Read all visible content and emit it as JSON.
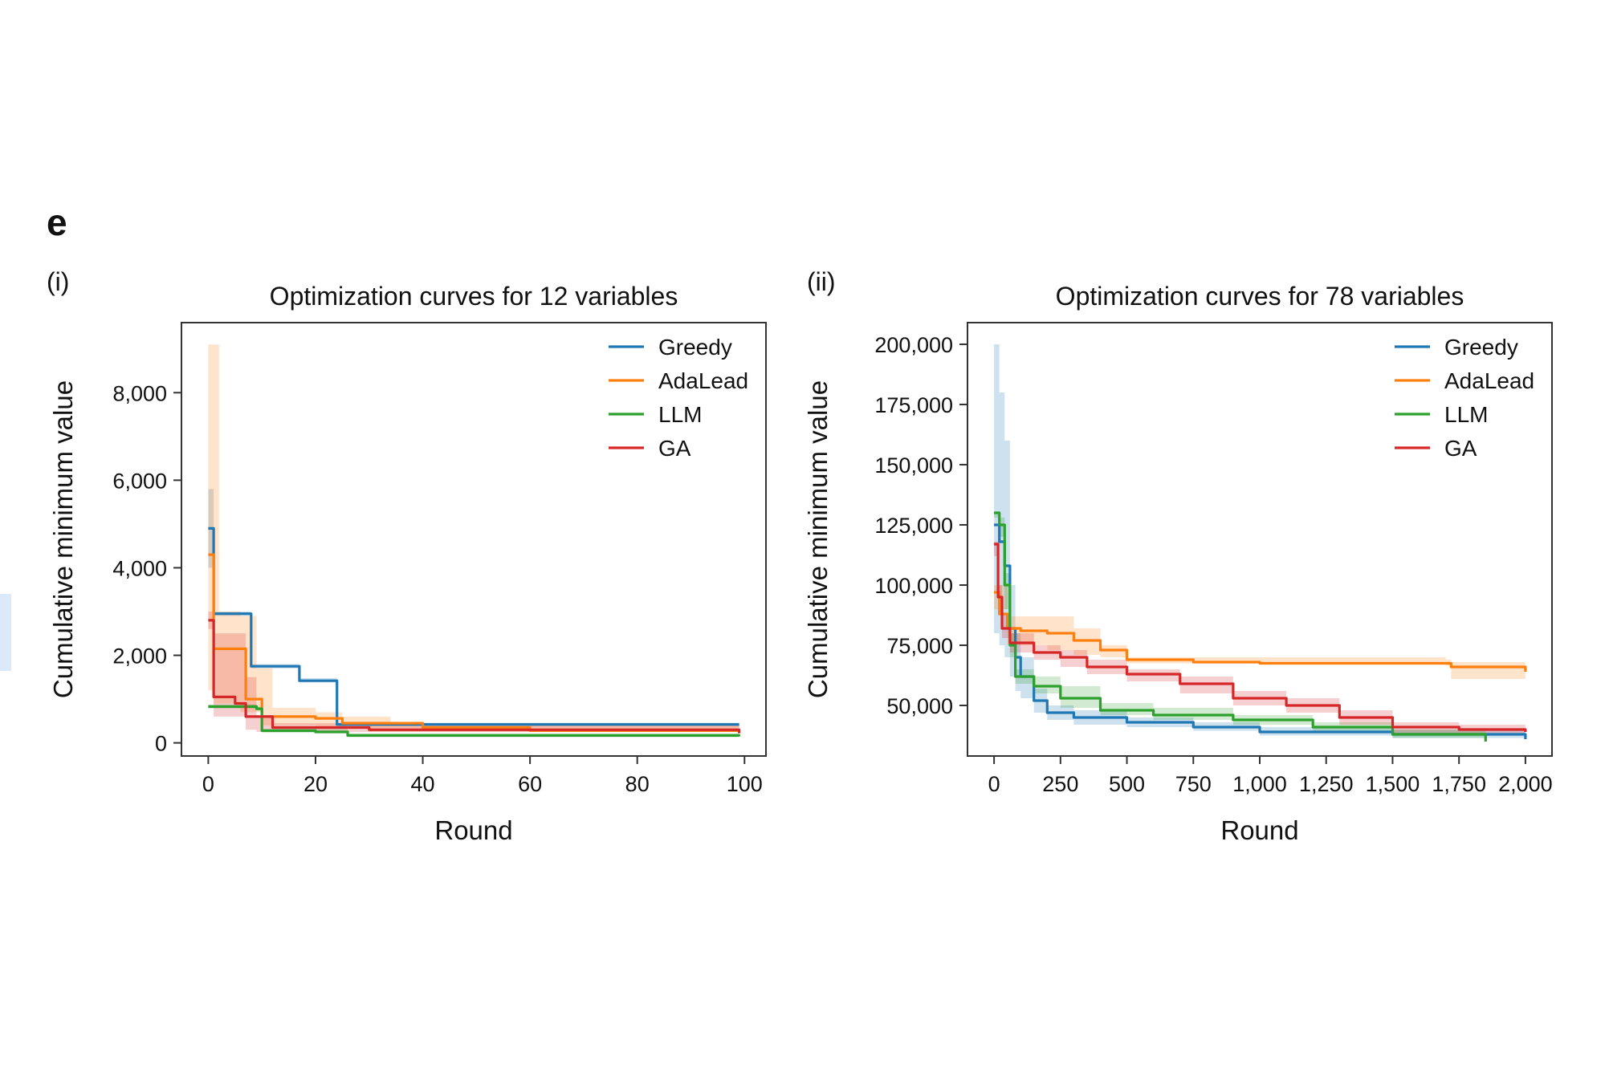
{
  "figure": {
    "panel_letter": "e"
  },
  "chart_data": [
    {
      "type": "line",
      "panel_label": "(i)",
      "title": "Optimization curves for 12 variables",
      "xlabel": "Round",
      "ylabel": "Cumulative minimum value",
      "xlim": [
        -5,
        104
      ],
      "ylim": [
        -300,
        9600
      ],
      "xticks": [
        0,
        20,
        40,
        60,
        80,
        100
      ],
      "xtick_labels": [
        "0",
        "20",
        "40",
        "60",
        "80",
        "100"
      ],
      "yticks": [
        0,
        2000,
        4000,
        6000,
        8000
      ],
      "ytick_labels": [
        "0",
        "2,000",
        "4,000",
        "6,000",
        "8,000"
      ],
      "grid": false,
      "legend": "top-right",
      "series": [
        {
          "name": "Greedy",
          "color": "#1f77b4",
          "points": [
            [
              0,
              4900
            ],
            [
              1,
              2950
            ],
            [
              6,
              2950
            ],
            [
              8,
              1750
            ],
            [
              15,
              1750
            ],
            [
              17,
              1420
            ],
            [
              22,
              1420
            ],
            [
              24,
              420
            ],
            [
              99,
              420
            ]
          ],
          "band_upper": [
            [
              0,
              5800
            ],
            [
              1,
              3000
            ],
            [
              6,
              3000
            ],
            [
              8,
              1800
            ],
            [
              15,
              1800
            ],
            [
              17,
              1480
            ],
            [
              22,
              1480
            ],
            [
              24,
              460
            ],
            [
              99,
              460
            ]
          ],
          "band_lower": [
            [
              0,
              4000
            ],
            [
              1,
              2900
            ],
            [
              6,
              2900
            ],
            [
              8,
              1700
            ],
            [
              15,
              1700
            ],
            [
              17,
              1380
            ],
            [
              22,
              1380
            ],
            [
              24,
              380
            ],
            [
              99,
              380
            ]
          ]
        },
        {
          "name": "AdaLead",
          "color": "#ff7f0e",
          "points": [
            [
              0,
              4300
            ],
            [
              1,
              2150
            ],
            [
              5,
              2150
            ],
            [
              7,
              1000
            ],
            [
              10,
              600
            ],
            [
              20,
              560
            ],
            [
              25,
              450
            ],
            [
              40,
              350
            ],
            [
              60,
              280
            ],
            [
              99,
              250
            ]
          ],
          "band_upper": [
            [
              0,
              9100
            ],
            [
              1,
              9100
            ],
            [
              2,
              3000
            ],
            [
              6,
              2900
            ],
            [
              9,
              1700
            ],
            [
              12,
              800
            ],
            [
              20,
              700
            ],
            [
              25,
              600
            ],
            [
              33,
              600
            ],
            [
              34,
              450
            ],
            [
              99,
              320
            ]
          ],
          "band_lower": [
            [
              0,
              1200
            ],
            [
              1,
              900
            ],
            [
              6,
              700
            ],
            [
              10,
              400
            ],
            [
              20,
              350
            ],
            [
              30,
              250
            ],
            [
              99,
              180
            ]
          ]
        },
        {
          "name": "LLM",
          "color": "#2ca02c",
          "points": [
            [
              0,
              830
            ],
            [
              9,
              780
            ],
            [
              10,
              280
            ],
            [
              20,
              250
            ],
            [
              26,
              170
            ],
            [
              99,
              150
            ]
          ],
          "band_upper": [
            [
              0,
              880
            ],
            [
              9,
              830
            ],
            [
              10,
              320
            ],
            [
              26,
              220
            ],
            [
              99,
              190
            ]
          ],
          "band_lower": [
            [
              0,
              780
            ],
            [
              9,
              730
            ],
            [
              10,
              230
            ],
            [
              26,
              130
            ],
            [
              99,
              110
            ]
          ]
        },
        {
          "name": "GA",
          "color": "#d62728",
          "points": [
            [
              0,
              2800
            ],
            [
              1,
              1050
            ],
            [
              5,
              900
            ],
            [
              7,
              600
            ],
            [
              12,
              350
            ],
            [
              30,
              300
            ],
            [
              99,
              220
            ]
          ],
          "band_upper": [
            [
              0,
              3000
            ],
            [
              1,
              2500
            ],
            [
              7,
              1500
            ],
            [
              9,
              600
            ],
            [
              12,
              450
            ],
            [
              99,
              280
            ]
          ],
          "band_lower": [
            [
              0,
              2600
            ],
            [
              1,
              600
            ],
            [
              7,
              300
            ],
            [
              9,
              250
            ],
            [
              99,
              170
            ]
          ]
        }
      ]
    },
    {
      "type": "line",
      "panel_label": "(ii)",
      "title": "Optimization curves for 78 variables",
      "xlabel": "Round",
      "ylabel": "Cumulative minimum value",
      "xlim": [
        -100,
        2100
      ],
      "ylim": [
        29000,
        209000
      ],
      "xticks": [
        0,
        250,
        500,
        750,
        1000,
        1250,
        1500,
        1750,
        2000
      ],
      "xtick_labels": [
        "0",
        "250",
        "500",
        "750",
        "1,000",
        "1,250",
        "1,500",
        "1,750",
        "2,000"
      ],
      "yticks": [
        50000,
        75000,
        100000,
        125000,
        150000,
        175000,
        200000
      ],
      "ytick_labels": [
        "50,000",
        "75,000",
        "100,000",
        "125,000",
        "150,000",
        "175,000",
        "200,000"
      ],
      "grid": false,
      "legend": "top-right",
      "series": [
        {
          "name": "Greedy",
          "color": "#1f77b4",
          "points": [
            [
              0,
              125000
            ],
            [
              20,
              118000
            ],
            [
              40,
              108000
            ],
            [
              60,
              82000
            ],
            [
              80,
              70000
            ],
            [
              100,
              62000
            ],
            [
              150,
              52000
            ],
            [
              200,
              47000
            ],
            [
              300,
              45000
            ],
            [
              500,
              43000
            ],
            [
              750,
              41000
            ],
            [
              1000,
              39000
            ],
            [
              1500,
              38000
            ],
            [
              2000,
              36000
            ]
          ],
          "band_upper": [
            [
              0,
              200000
            ],
            [
              20,
              180000
            ],
            [
              40,
              160000
            ],
            [
              60,
              100000
            ],
            [
              80,
              80000
            ],
            [
              100,
              70000
            ],
            [
              150,
              57000
            ],
            [
              200,
              50000
            ],
            [
              300,
              48000
            ],
            [
              500,
              45000
            ],
            [
              750,
              43000
            ],
            [
              1000,
              41000
            ],
            [
              1500,
              40000
            ],
            [
              2000,
              38000
            ]
          ],
          "band_lower": [
            [
              0,
              80000
            ],
            [
              20,
              75000
            ],
            [
              40,
              70000
            ],
            [
              60,
              62000
            ],
            [
              80,
              56000
            ],
            [
              100,
              53000
            ],
            [
              150,
              47000
            ],
            [
              200,
              44000
            ],
            [
              300,
              42000
            ],
            [
              500,
              41000
            ],
            [
              750,
              39500
            ],
            [
              1000,
              37500
            ],
            [
              1500,
              36500
            ],
            [
              2000,
              34500
            ]
          ]
        },
        {
          "name": "AdaLead",
          "color": "#ff7f0e",
          "points": [
            [
              0,
              97000
            ],
            [
              20,
              88000
            ],
            [
              50,
              82000
            ],
            [
              100,
              81000
            ],
            [
              200,
              80000
            ],
            [
              300,
              77000
            ],
            [
              400,
              73000
            ],
            [
              500,
              69000
            ],
            [
              750,
              68000
            ],
            [
              1000,
              67500
            ],
            [
              1500,
              67500
            ],
            [
              1700,
              67500
            ],
            [
              1720,
              66000
            ],
            [
              2000,
              64000
            ]
          ],
          "band_upper": [
            [
              0,
              100000
            ],
            [
              50,
              87000
            ],
            [
              200,
              87000
            ],
            [
              300,
              82000
            ],
            [
              400,
              75000
            ],
            [
              500,
              70000
            ],
            [
              1700,
              69000
            ],
            [
              1720,
              68000
            ],
            [
              2000,
              66000
            ]
          ],
          "band_lower": [
            [
              0,
              90000
            ],
            [
              50,
              75000
            ],
            [
              200,
              73000
            ],
            [
              300,
              71000
            ],
            [
              400,
              70000
            ],
            [
              500,
              67500
            ],
            [
              1700,
              66500
            ],
            [
              1720,
              61000
            ],
            [
              2000,
              61000
            ]
          ]
        },
        {
          "name": "LLM",
          "color": "#2ca02c",
          "points": [
            [
              0,
              130000
            ],
            [
              20,
              125000
            ],
            [
              40,
              100000
            ],
            [
              60,
              75000
            ],
            [
              80,
              62000
            ],
            [
              150,
              58000
            ],
            [
              250,
              53000
            ],
            [
              400,
              48000
            ],
            [
              600,
              46000
            ],
            [
              900,
              44000
            ],
            [
              1200,
              41000
            ],
            [
              1500,
              38000
            ],
            [
              1850,
              35000
            ]
          ],
          "band_upper": [
            [
              0,
              130000
            ],
            [
              20,
              128000
            ],
            [
              40,
              105000
            ],
            [
              60,
              80000
            ],
            [
              80,
              65000
            ],
            [
              150,
              62000
            ],
            [
              250,
              58000
            ],
            [
              400,
              51000
            ],
            [
              600,
              49000
            ],
            [
              900,
              46000
            ],
            [
              1200,
              43000
            ],
            [
              1500,
              40000
            ],
            [
              1850,
              36500
            ]
          ],
          "band_lower": [
            [
              0,
              128000
            ],
            [
              20,
              120000
            ],
            [
              40,
              90000
            ],
            [
              60,
              70000
            ],
            [
              80,
              59000
            ],
            [
              150,
              55000
            ],
            [
              250,
              49000
            ],
            [
              400,
              46000
            ],
            [
              600,
              44000
            ],
            [
              900,
              42000
            ],
            [
              1200,
              39000
            ],
            [
              1500,
              36500
            ],
            [
              1850,
              34000
            ]
          ]
        },
        {
          "name": "GA",
          "color": "#d62728",
          "points": [
            [
              0,
              117000
            ],
            [
              15,
              95000
            ],
            [
              30,
              82000
            ],
            [
              60,
              76000
            ],
            [
              150,
              72000
            ],
            [
              250,
              70000
            ],
            [
              350,
              66000
            ],
            [
              500,
              63000
            ],
            [
              700,
              59000
            ],
            [
              900,
              53000
            ],
            [
              1100,
              50000
            ],
            [
              1300,
              45000
            ],
            [
              1500,
              41000
            ],
            [
              1750,
              40000
            ],
            [
              2000,
              39000
            ]
          ],
          "band_upper": [
            [
              0,
              118000
            ],
            [
              15,
              100000
            ],
            [
              30,
              88000
            ],
            [
              60,
              80000
            ],
            [
              150,
              75000
            ],
            [
              250,
              73000
            ],
            [
              350,
              69000
            ],
            [
              500,
              65000
            ],
            [
              700,
              62000
            ],
            [
              900,
              56000
            ],
            [
              1100,
              53000
            ],
            [
              1300,
              48000
            ],
            [
              1500,
              43000
            ],
            [
              1750,
              42000
            ],
            [
              2000,
              41000
            ]
          ],
          "band_lower": [
            [
              0,
              112000
            ],
            [
              15,
              88000
            ],
            [
              30,
              78000
            ],
            [
              60,
              72000
            ],
            [
              150,
              69000
            ],
            [
              250,
              66000
            ],
            [
              350,
              63000
            ],
            [
              500,
              60000
            ],
            [
              700,
              55000
            ],
            [
              900,
              50000
            ],
            [
              1100,
              47000
            ],
            [
              1300,
              42000
            ],
            [
              1500,
              38000
            ],
            [
              1750,
              37500
            ],
            [
              2000,
              37000
            ]
          ]
        }
      ]
    }
  ]
}
